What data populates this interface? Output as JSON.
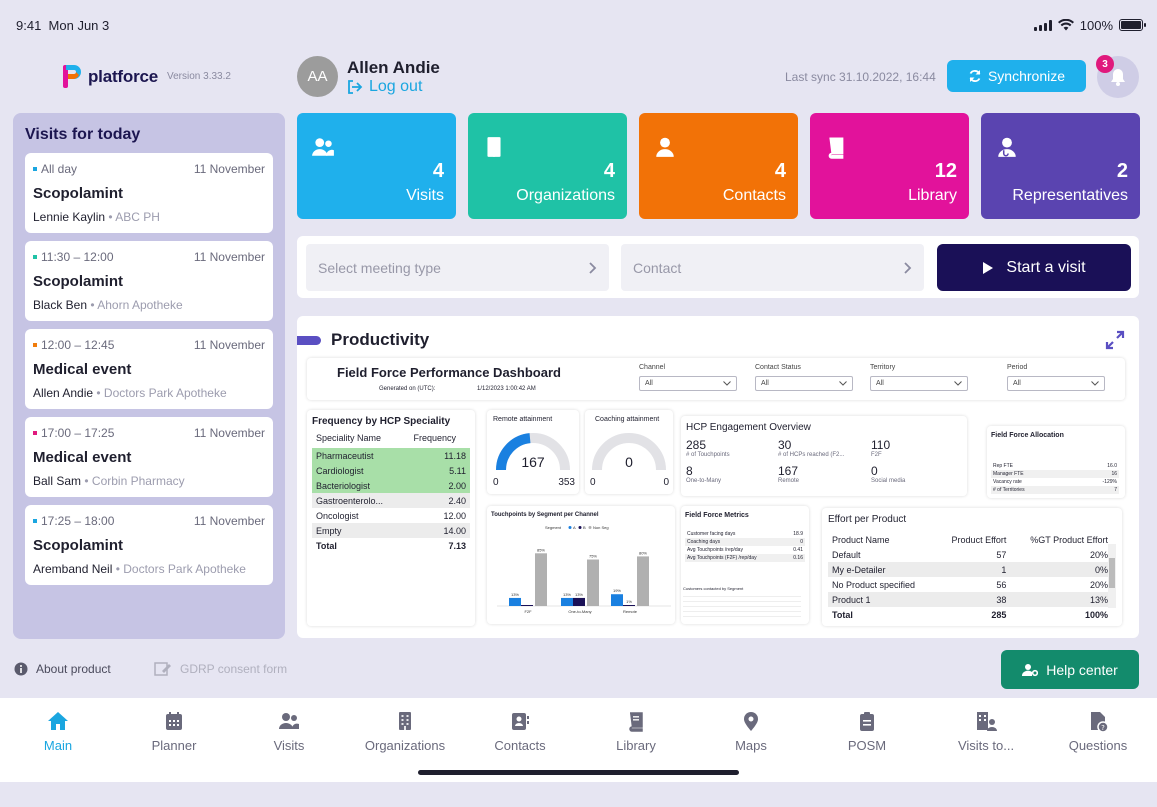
{
  "status": {
    "time": "9:41",
    "date": "Mon Jun 3",
    "battery": "100%"
  },
  "header": {
    "logo_text": "platforce",
    "version": "Version 3.33.2",
    "avatar_initials": "AA",
    "user_name": "Allen Andie",
    "logout_label": "Log out",
    "last_sync": "Last sync 31.10.2022, 16:44",
    "sync_label": "Synchronize",
    "notification_count": "3"
  },
  "visits": {
    "title": "Visits for today",
    "items": [
      {
        "time": "All day",
        "dot_color": "#1aa6e0",
        "date": "11 November",
        "name": "Scopolamint",
        "person": "Lennie Kaylin",
        "org": "• ABC PH"
      },
      {
        "time": "11:30 – 12:00",
        "dot_color": "#1fc2a6",
        "date": "11 November",
        "name": "Scopolamint",
        "person": "Black Ben",
        "org": "• Ahorn Apotheke"
      },
      {
        "time": "12:00 – 12:45",
        "dot_color": "#f07c0c",
        "date": "11 November",
        "name": "Medical event",
        "person": "Allen Andie",
        "org": "• Doctors Park Apotheke"
      },
      {
        "time": "17:00 – 17:25",
        "dot_color": "#e0197d",
        "date": "11 November",
        "name": "Medical event",
        "person": "Ball Sam",
        "org": "• Corbin Pharmacy"
      },
      {
        "time": "17:25 – 18:00",
        "dot_color": "#1aa6e0",
        "date": "11 November",
        "name": "Scopolamint",
        "person": "Aremband Neil",
        "org": "• Doctors Park Apotheke"
      }
    ]
  },
  "tiles": [
    {
      "count": "4",
      "label": "Visits",
      "color": "#1fb0ec",
      "icon": "users-icon"
    },
    {
      "count": "4",
      "label": "Organizations",
      "color": "#1fc2a6",
      "icon": "building-icon"
    },
    {
      "count": "4",
      "label": "Contacts",
      "color": "#f27207",
      "icon": "person-icon"
    },
    {
      "count": "12",
      "label": "Library",
      "color": "#e2129b",
      "icon": "book-icon"
    },
    {
      "count": "2",
      "label": "Representatives",
      "color": "#5a44b0",
      "icon": "doctor-icon"
    }
  ],
  "start": {
    "meeting_type_placeholder": "Select meeting type",
    "contact_placeholder": "Contact",
    "start_label": "Start a visit"
  },
  "productivity": {
    "title": "Productivity",
    "dashboard": {
      "title": "Field Force Performance Dashboard",
      "generated_label": "Generated on (UTC):",
      "generated_value": "1/12/2023 1:00:42 AM",
      "filters": [
        {
          "label": "Channel",
          "value": "All"
        },
        {
          "label": "Contact Status",
          "value": "All"
        },
        {
          "label": "Territory",
          "value": "All"
        },
        {
          "label": "Period",
          "value": "All"
        }
      ],
      "frequency": {
        "title": "Frequency by HCP Speciality",
        "col1": "Speciality Name",
        "col2": "Frequency",
        "rows": [
          {
            "name": "Pharmaceutist",
            "value": "11.18"
          },
          {
            "name": "Cardiologist",
            "value": "5.11"
          },
          {
            "name": "Bacteriologist",
            "value": "2.00"
          },
          {
            "name": "Gastroenterolo...",
            "value": "2.40"
          },
          {
            "name": "Oncologist",
            "value": "12.00"
          },
          {
            "name": "Empty",
            "value": "14.00"
          },
          {
            "name": "Total",
            "value": "7.13"
          }
        ]
      },
      "remote": {
        "title": "Remote attainment",
        "value": "167",
        "min": "0",
        "max": "353",
        "fraction": 0.47
      },
      "coaching": {
        "title": "Coaching attainment",
        "value": "0",
        "min": "0",
        "max": "0",
        "fraction": 0
      },
      "engagement": {
        "title": "HCP Engagement Overview",
        "metrics": [
          {
            "value": "285",
            "label": "# of Touchpoints"
          },
          {
            "value": "30",
            "label": "# of HCPs reached (F2..."
          },
          {
            "value": "110",
            "label": "F2F"
          },
          {
            "value": "8",
            "label": "One-to-Many"
          },
          {
            "value": "167",
            "label": "Remote"
          },
          {
            "value": "0",
            "label": "Social media"
          }
        ]
      },
      "allocation": {
        "title": "Field Force Allocation",
        "rows": [
          {
            "name": "Rep FTE",
            "value": "16.0"
          },
          {
            "name": "Manager FTE",
            "value": "16"
          },
          {
            "name": "Vacancy rate",
            "value": "-129%"
          },
          {
            "name": "# of Territories",
            "value": "7"
          }
        ]
      },
      "touchpoints": {
        "title": "Touchpoints by Segment per Channel",
        "legend_label": "Segment",
        "legend_items": [
          "A",
          "B",
          "Non Seg"
        ],
        "categories": [
          "F2F",
          "One-to-Many",
          "Remote"
        ],
        "bars": [
          {
            "a": 13,
            "b": 1,
            "c": 85,
            "a_label": "13%",
            "b_label": "",
            "c_label": "85%"
          },
          {
            "a": 13,
            "b": 13,
            "c": 75,
            "a_label": "13%",
            "b_label": "13%",
            "c_label": "75%"
          },
          {
            "a": 19,
            "b": 1,
            "c": 80,
            "a_label": "19%",
            "b_label": "1%",
            "c_label": "80%"
          }
        ]
      },
      "metrics": {
        "title": "Field Force Metrics",
        "rows": [
          {
            "name": "Customer facing days",
            "value": "18.9"
          },
          {
            "name": "Coaching days",
            "value": "0"
          },
          {
            "name": "Avg Touchpoints /rep/day",
            "value": "0.41"
          },
          {
            "name": "Avg Touchpoints (F2F) /rep/day",
            "value": "0.16"
          }
        ],
        "segment_title": "Customers contacted by Segment"
      },
      "effort": {
        "title": "Effort per Product",
        "col1": "Product Name",
        "col2": "Product Effort",
        "col3": "%GT Product Effort",
        "rows": [
          {
            "name": "Default",
            "effort": "57",
            "pct": "20%"
          },
          {
            "name": "My e-Detailer",
            "effort": "1",
            "pct": "0%"
          },
          {
            "name": "No Product specified",
            "effort": "56",
            "pct": "20%"
          },
          {
            "name": "Product 1",
            "effort": "38",
            "pct": "13%"
          },
          {
            "name": "Total",
            "effort": "285",
            "pct": "100%"
          }
        ]
      }
    }
  },
  "footer": {
    "about_label": "About product",
    "gdpr_label": "GDRP consent form",
    "help_label": "Help center"
  },
  "tabs": [
    {
      "label": "Main",
      "icon": "home-icon",
      "active": true
    },
    {
      "label": "Planner",
      "icon": "calendar-icon",
      "active": false
    },
    {
      "label": "Visits",
      "icon": "users-icon",
      "active": false
    },
    {
      "label": "Organizations",
      "icon": "building-icon",
      "active": false
    },
    {
      "label": "Contacts",
      "icon": "contact-card-icon",
      "active": false
    },
    {
      "label": "Library",
      "icon": "book-icon",
      "active": false
    },
    {
      "label": "Maps",
      "icon": "map-pin-icon",
      "active": false
    },
    {
      "label": "POSM",
      "icon": "clipboard-icon",
      "active": false
    },
    {
      "label": "Visits to...",
      "icon": "building-user-icon",
      "active": false
    },
    {
      "label": "Questions",
      "icon": "question-doc-icon",
      "active": false
    }
  ]
}
